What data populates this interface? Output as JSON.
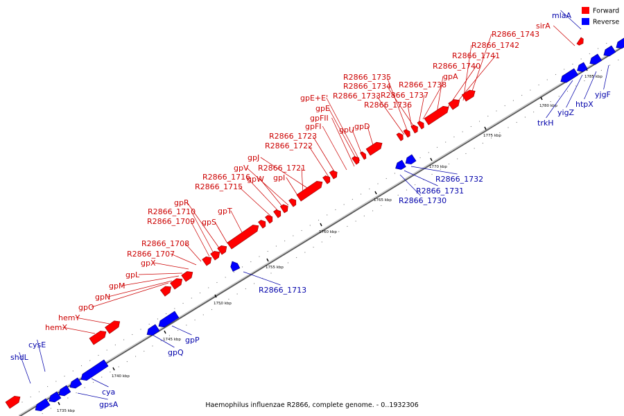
{
  "caption": "Haemophilus influenzae R2866, complete genome. - 0..1932306",
  "legend": [
    {
      "label": "Forward",
      "color": "#ff0000"
    },
    {
      "label": "Reverse",
      "color": "#0000ff"
    }
  ],
  "colors": {
    "forward": "#ff0000",
    "reverse": "#0000ff",
    "forward_label": "#cc0000",
    "reverse_label": "#0000aa",
    "backbone": "#8c8c8c"
  },
  "ticks": [
    "1735 kbp",
    "1740 kbp",
    "1745 kbp",
    "1750 kbp",
    "1755 kbp",
    "1760 kbp",
    "1765 kbp",
    "1770 kbp",
    "1775 kbp",
    "1780 kbp",
    "1785 kbp"
  ],
  "forward_labels": [
    "sirA",
    "R2866_1743",
    "R2866_1742",
    "R2866_1741",
    "R2866_1740",
    "gpA",
    "R2866_1738",
    "R2866_1737",
    "R2866_1736",
    "R2866_1735",
    "R2866_1734",
    "R2866_1733",
    "gpE+E'",
    "gpE",
    "gpFII",
    "gpU",
    "gpD",
    "gpFI",
    "R2866_1723",
    "R2866_1722",
    "gpJ",
    "R2866_1721",
    "gpV",
    "R2866_1716",
    "gpW",
    "gpI",
    "R2866_1715",
    "gpR",
    "gpT",
    "R2866_1710",
    "gpS",
    "R2866_1709",
    "R2866_1708",
    "R2866_1707",
    "gpX",
    "gpL",
    "gpM",
    "gpN",
    "gpO",
    "hemY",
    "hemX"
  ],
  "reverse_labels": [
    "mlaA",
    "yjgF",
    "htpX",
    "yigZ",
    "trkH",
    "R2866_1732",
    "R2866_1731",
    "R2866_1730",
    "R2866_1713",
    "gpP",
    "gpQ",
    "cya",
    "gpsA",
    "cysE",
    "shdL"
  ]
}
